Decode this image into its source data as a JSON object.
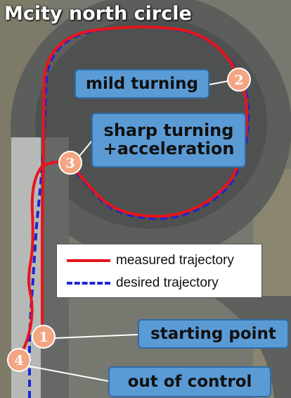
{
  "title": "Mcity north circle",
  "callouts": {
    "mild": "mild turning",
    "sharp_line1": "sharp turning",
    "sharp_line2": "+acceleration",
    "start": "starting point",
    "out": "out of control"
  },
  "markers": [
    "1",
    "2",
    "3",
    "4"
  ],
  "legend": {
    "measured": "measured trajectory",
    "desired": "desired trajectory"
  },
  "colors": {
    "measured": "#e8141a",
    "desired": "#1c25d6",
    "callout_fill": "#5b9bd5",
    "marker_fill": "#f4a582"
  }
}
